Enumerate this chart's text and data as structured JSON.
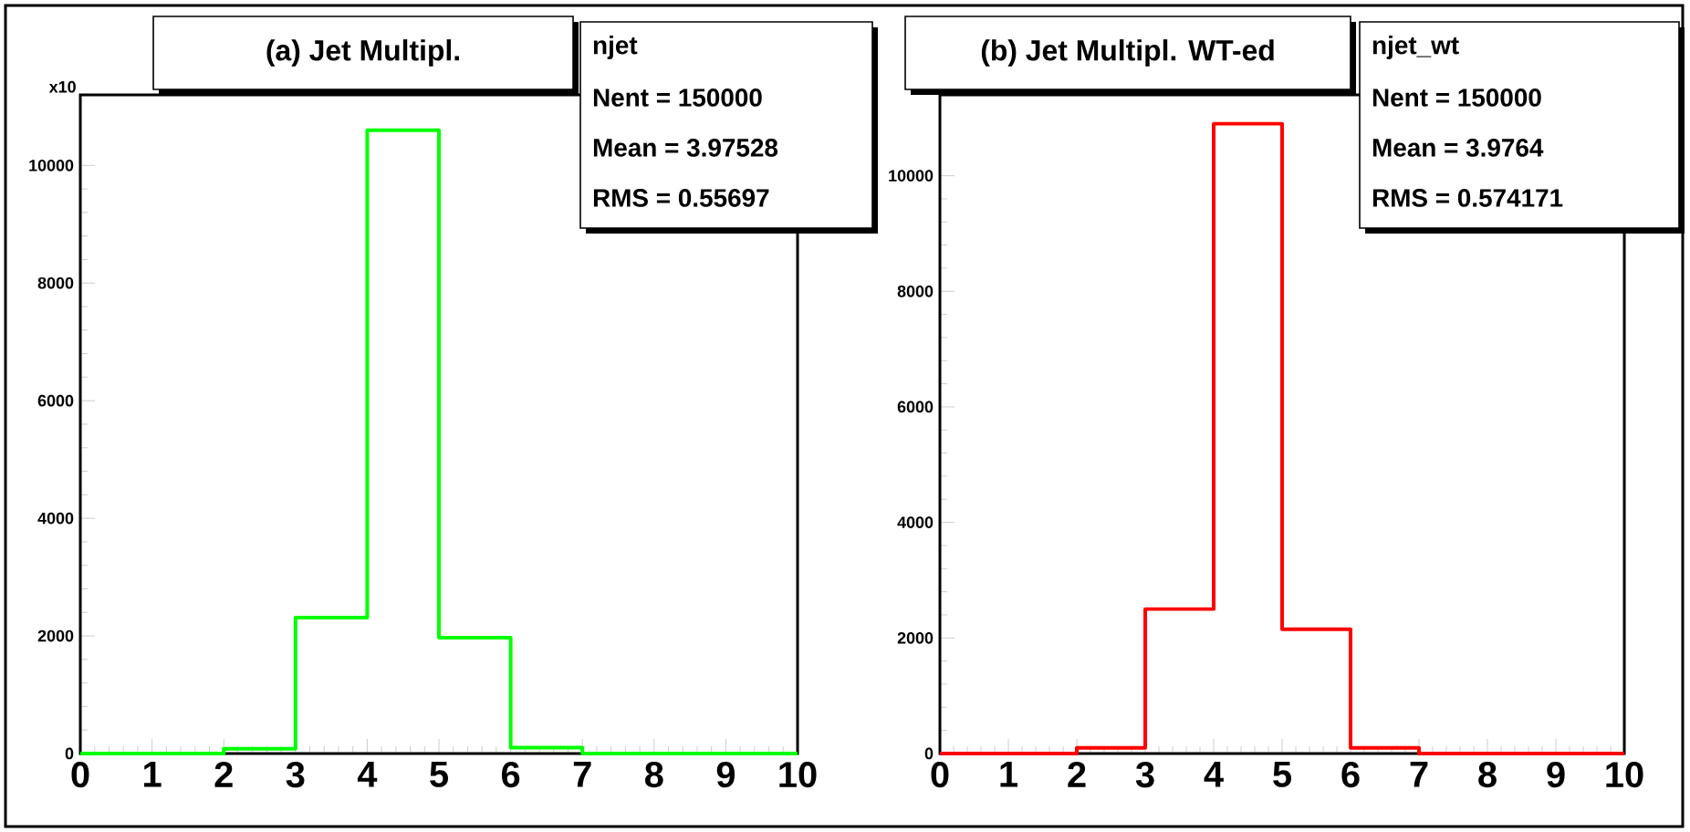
{
  "chart_data": [
    {
      "type": "histogram",
      "title": "(a) Jet Multipl.",
      "ylabel": "x10",
      "color": "#00ff00",
      "bins": [
        0,
        1,
        2,
        3,
        4,
        5,
        6,
        7,
        8,
        9,
        10
      ],
      "values": [
        0,
        0,
        80,
        2310,
        10600,
        1970,
        100,
        0,
        0,
        0
      ],
      "xlim": [
        0,
        10
      ],
      "ylim": [
        0,
        11200
      ],
      "xticks": [
        0,
        1,
        2,
        3,
        4,
        5,
        6,
        7,
        8,
        9,
        10
      ],
      "yticks": [
        0,
        2000,
        4000,
        6000,
        8000,
        10000
      ],
      "annotations": [
        "njet",
        "Nent = 150000",
        "Mean = 3.97528",
        "RMS  = 0.55697"
      ]
    },
    {
      "type": "histogram",
      "title": "(b) Jet Multipl.  WT-ed",
      "color": "#ff0000",
      "bins": [
        0,
        1,
        2,
        3,
        4,
        5,
        6,
        7,
        8,
        9,
        10
      ],
      "values": [
        0,
        0,
        100,
        2500,
        10900,
        2150,
        100,
        0,
        0,
        0
      ],
      "xlim": [
        0,
        10
      ],
      "ylim": [
        0,
        11400
      ],
      "xticks": [
        0,
        1,
        2,
        3,
        4,
        5,
        6,
        7,
        8,
        9,
        10
      ],
      "yticks": [
        0,
        2000,
        4000,
        6000,
        8000,
        10000
      ],
      "annotations": [
        "njet_wt",
        "Nent = 150000",
        "Mean = 3.9764",
        "RMS  = 0.574171"
      ]
    }
  ]
}
